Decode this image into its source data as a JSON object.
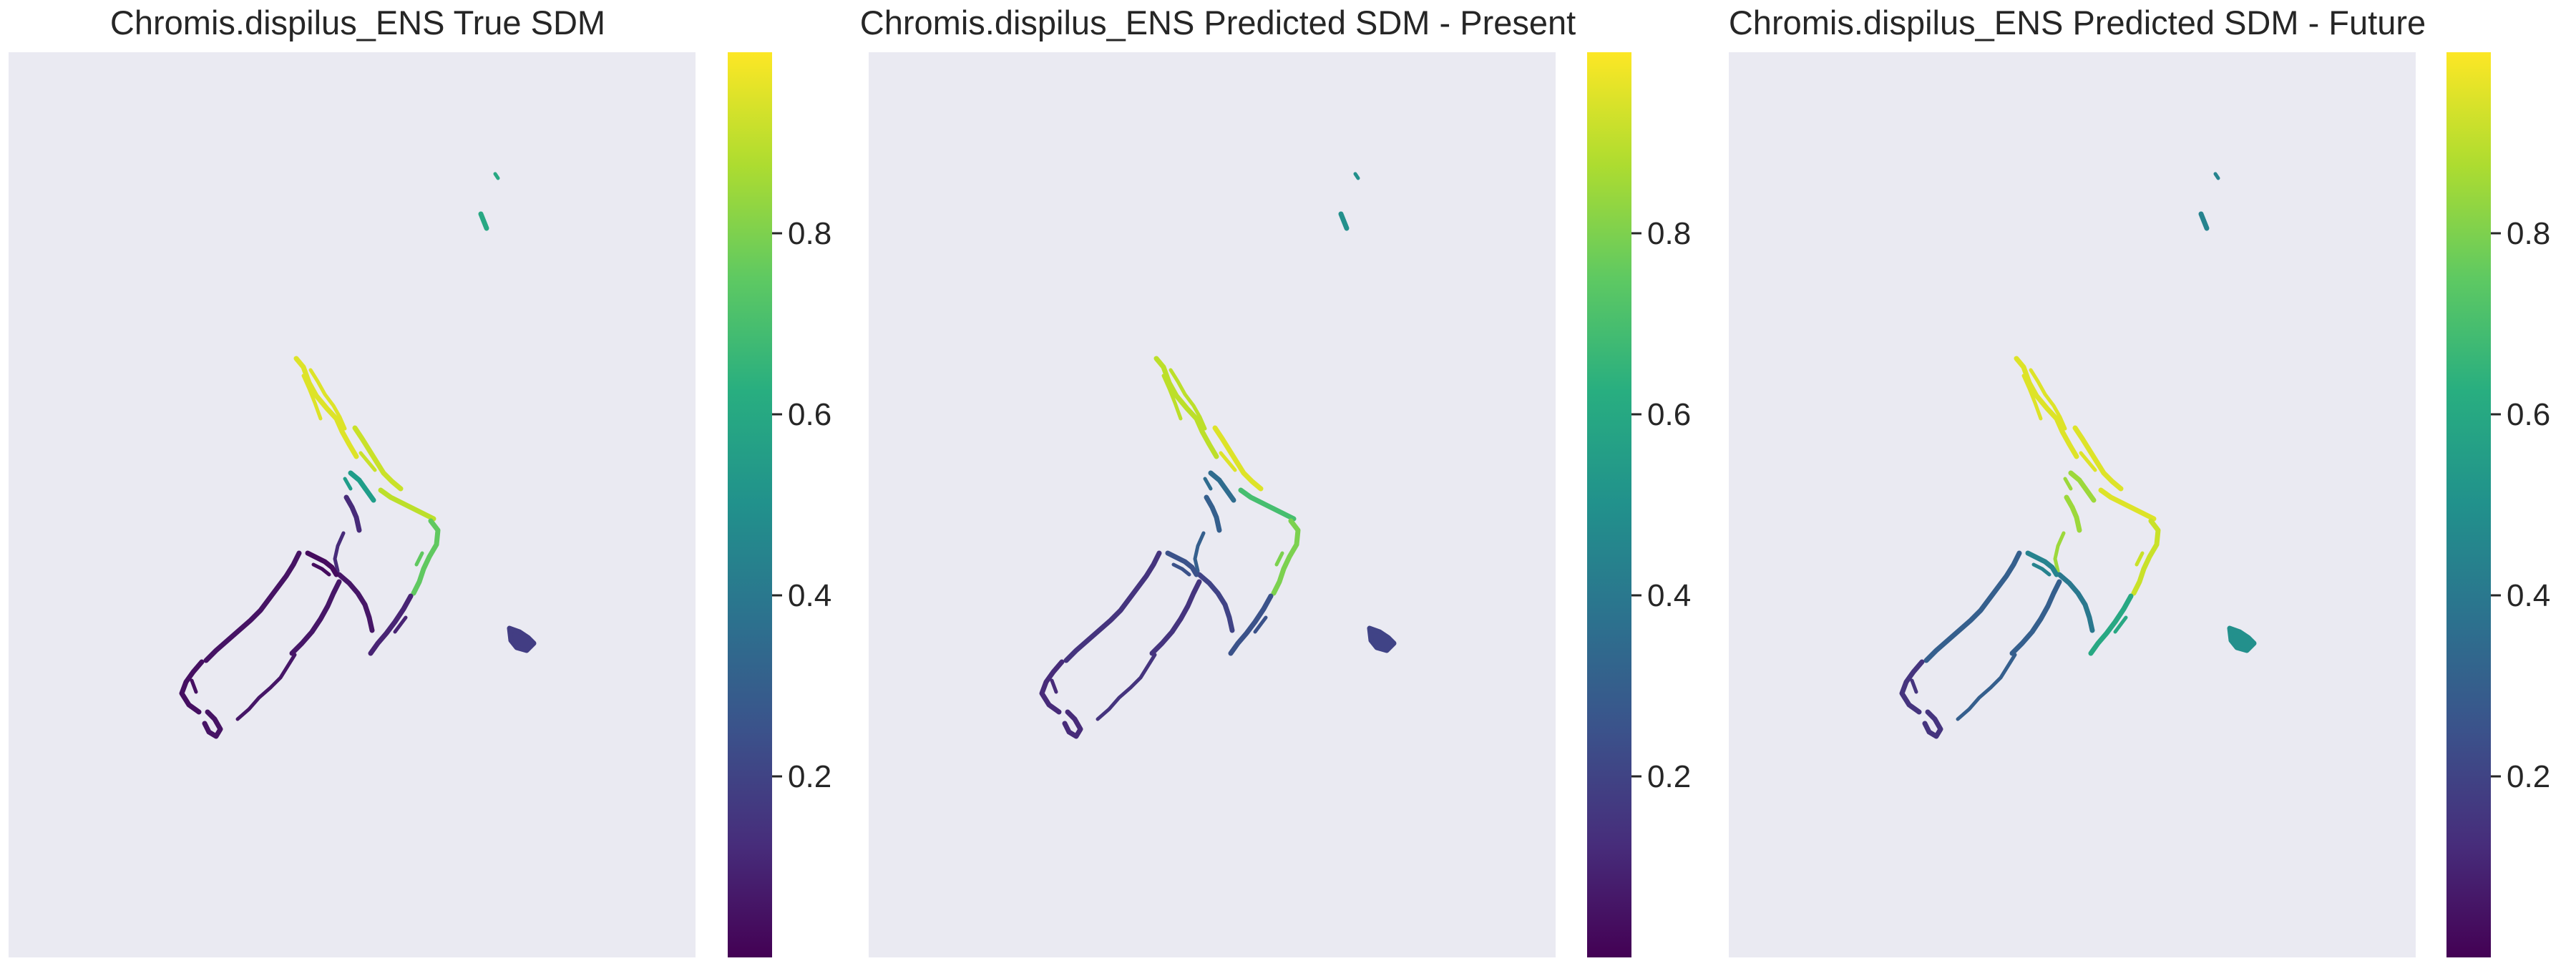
{
  "chart_data": [
    {
      "type": "heatmap",
      "title": "Chromis.dispilus_ENS True SDM",
      "colormap": "viridis",
      "colorbar": {
        "vmin": 0.0,
        "vmax": 1.0,
        "ticks": [
          0.2,
          0.4,
          0.6,
          0.8
        ],
        "tick_labels": [
          "0.2",
          "0.4",
          "0.6",
          "0.8"
        ]
      },
      "axes": {
        "x_ticks": false,
        "y_ticks": false,
        "grid": false
      },
      "regions": [
        {
          "name": "northland",
          "value": 0.95
        },
        {
          "name": "auckland",
          "value": 0.92
        },
        {
          "name": "coromandel",
          "value": 0.55
        },
        {
          "name": "bay-of-plenty",
          "value": 0.9
        },
        {
          "name": "east-cape",
          "value": 0.75
        },
        {
          "name": "west-coast-ni",
          "value": 0.12
        },
        {
          "name": "hawkes-bay",
          "value": 0.1
        },
        {
          "name": "wellington",
          "value": 0.06
        },
        {
          "name": "marlborough",
          "value": 0.03
        },
        {
          "name": "south-island-w",
          "value": 0.05
        },
        {
          "name": "south-island-e",
          "value": 0.06
        },
        {
          "name": "fiordland",
          "value": 0.04
        },
        {
          "name": "stewart-island",
          "value": 0.05
        },
        {
          "name": "three-kings",
          "value": 0.6
        },
        {
          "name": "chatham",
          "value": 0.18
        }
      ]
    },
    {
      "type": "heatmap",
      "title": "Chromis.dispilus_ENS Predicted SDM - Present",
      "colormap": "viridis",
      "colorbar": {
        "vmin": 0.0,
        "vmax": 1.0,
        "ticks": [
          0.2,
          0.4,
          0.6,
          0.8
        ],
        "tick_labels": [
          "0.2",
          "0.4",
          "0.6",
          "0.8"
        ]
      },
      "axes": {
        "x_ticks": false,
        "y_ticks": false,
        "grid": false
      },
      "regions": [
        {
          "name": "northland",
          "value": 0.9
        },
        {
          "name": "auckland",
          "value": 0.95
        },
        {
          "name": "coromandel",
          "value": 0.35
        },
        {
          "name": "bay-of-plenty",
          "value": 0.7
        },
        {
          "name": "east-cape",
          "value": 0.8
        },
        {
          "name": "west-coast-ni",
          "value": 0.3
        },
        {
          "name": "hawkes-bay",
          "value": 0.25
        },
        {
          "name": "wellington",
          "value": 0.2
        },
        {
          "name": "marlborough",
          "value": 0.25
        },
        {
          "name": "south-island-w",
          "value": 0.15
        },
        {
          "name": "south-island-e",
          "value": 0.15
        },
        {
          "name": "fiordland",
          "value": 0.12
        },
        {
          "name": "stewart-island",
          "value": 0.12
        },
        {
          "name": "three-kings",
          "value": 0.5
        },
        {
          "name": "chatham",
          "value": 0.2
        }
      ]
    },
    {
      "type": "heatmap",
      "title": "Chromis.dispilus_ENS Predicted SDM - Future",
      "colormap": "viridis",
      "colorbar": {
        "vmin": 0.0,
        "vmax": 1.0,
        "ticks": [
          0.2,
          0.4,
          0.6,
          0.8
        ],
        "tick_labels": [
          "0.2",
          "0.4",
          "0.6",
          "0.8"
        ]
      },
      "axes": {
        "x_ticks": false,
        "y_ticks": false,
        "grid": false
      },
      "regions": [
        {
          "name": "northland",
          "value": 0.95
        },
        {
          "name": "auckland",
          "value": 0.95
        },
        {
          "name": "coromandel",
          "value": 0.85
        },
        {
          "name": "bay-of-plenty",
          "value": 0.95
        },
        {
          "name": "east-cape",
          "value": 0.92
        },
        {
          "name": "west-coast-ni",
          "value": 0.85
        },
        {
          "name": "hawkes-bay",
          "value": 0.6
        },
        {
          "name": "wellington",
          "value": 0.4
        },
        {
          "name": "marlborough",
          "value": 0.45
        },
        {
          "name": "south-island-w",
          "value": 0.3
        },
        {
          "name": "south-island-e",
          "value": 0.3
        },
        {
          "name": "fiordland",
          "value": 0.15
        },
        {
          "name": "stewart-island",
          "value": 0.15
        },
        {
          "name": "three-kings",
          "value": 0.45
        },
        {
          "name": "chatham",
          "value": 0.5
        }
      ]
    }
  ]
}
